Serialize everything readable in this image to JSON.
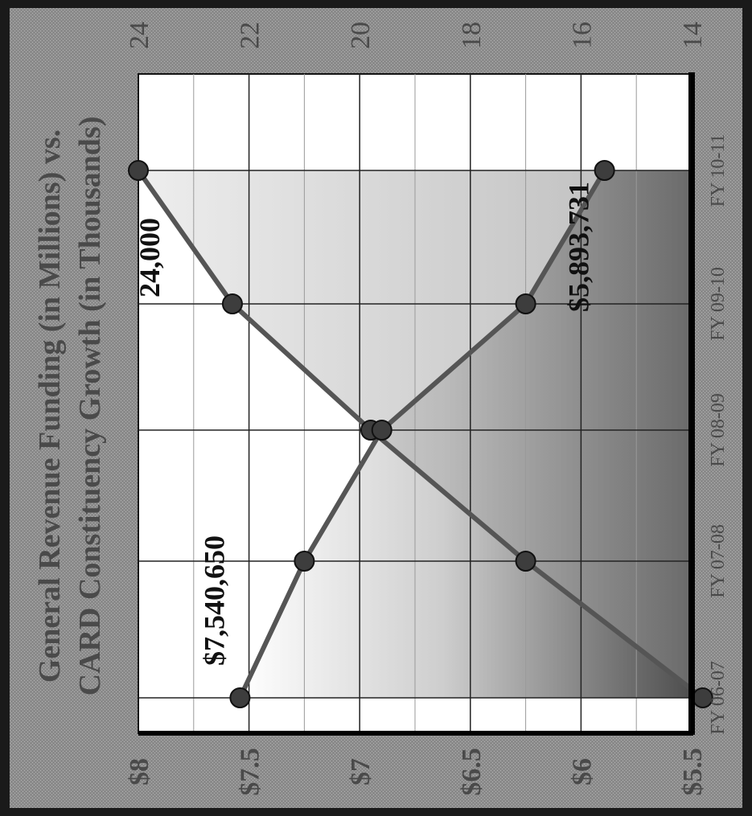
{
  "chart_data": {
    "type": "line",
    "title_line1": "General Revenue Funding (in Millions) vs.",
    "title_line2": "CARD Constituency Growth (in Thousands)",
    "title_line1_unit": "(in Millions)",
    "title_line2_unit": "(in Thousands)",
    "categories": [
      "FY 06-07",
      "FY 07-08",
      "FY 08-09",
      "FY 09-10",
      "FY 10-11"
    ],
    "left_axis": {
      "ticks": [
        "$8",
        "$7.5",
        "$7",
        "$6.5",
        "$6",
        "$5.5"
      ],
      "range": [
        5.5,
        8.0
      ],
      "unit": "millions of dollars"
    },
    "right_axis": {
      "ticks": [
        "24",
        "22",
        "20",
        "18",
        "16",
        "14"
      ],
      "range": [
        14,
        24
      ],
      "unit": "thousands"
    },
    "series": [
      {
        "key": "funding",
        "axis": "left",
        "values": [
          7.54065,
          7.25,
          6.9,
          6.25,
          5.893731
        ],
        "label_first": "$7,540,650",
        "label_last": "$5,893,731"
      },
      {
        "key": "constituency",
        "axis": "right",
        "values": [
          13.8,
          17.0,
          19.8,
          22.3,
          24.0
        ],
        "label_last": "24,000"
      }
    ],
    "grid": true,
    "orientation": "rotated 90° counter-clockwise"
  }
}
